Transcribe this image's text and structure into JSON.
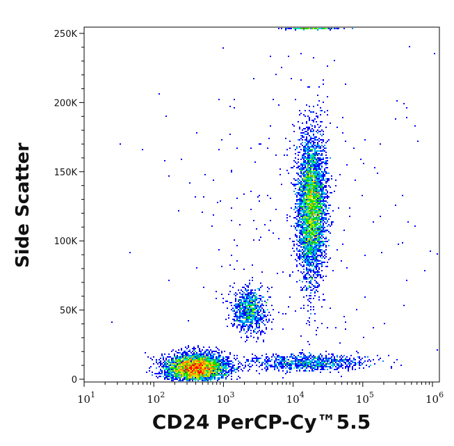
{
  "chart_data": {
    "type": "heatmap",
    "subtype": "flow-cytometry-density-scatter",
    "xlabel": "CD24 PerCP-Cy™5.5",
    "ylabel": "Side Scatter",
    "xscale": "log",
    "xlim": [
      10,
      1000000
    ],
    "ylim": [
      0,
      255000
    ],
    "x_ticks": [
      {
        "base": "10",
        "exp": "1",
        "value": 10
      },
      {
        "base": "10",
        "exp": "2",
        "value": 100
      },
      {
        "base": "10",
        "exp": "3",
        "value": 1000
      },
      {
        "base": "10",
        "exp": "4",
        "value": 10000
      },
      {
        "base": "10",
        "exp": "5",
        "value": 100000
      },
      {
        "base": "10",
        "exp": "6",
        "value": 1000000
      }
    ],
    "y_ticks": [
      {
        "label": "0",
        "value": 0
      },
      {
        "label": "50K",
        "value": 50000
      },
      {
        "label": "100K",
        "value": 100000
      },
      {
        "label": "150K",
        "value": 150000
      },
      {
        "label": "200K",
        "value": 200000
      },
      {
        "label": "250K",
        "value": 250000
      }
    ],
    "colormap": [
      "#0000ff",
      "#0088ff",
      "#00e0e0",
      "#00e000",
      "#e0e000",
      "#ff8000",
      "#ff0000"
    ],
    "populations": [
      {
        "name": "CD24-low low-SSC",
        "center_x": 400,
        "center_y": 8000,
        "log_spread_x": 0.22,
        "spread_y": 5000,
        "events": 4200
      },
      {
        "name": "CD24-intermediate",
        "center_x": 2400,
        "center_y": 50000,
        "log_spread_x": 0.12,
        "spread_y": 8000,
        "events": 900
      },
      {
        "name": "CD24-high high-SSC",
        "center_x": 18500,
        "center_y": 125000,
        "log_spread_x": 0.1,
        "spread_y": 26000,
        "events": 4500
      },
      {
        "name": "low-SSC band",
        "center_x": 15000,
        "center_y": 12000,
        "log_spread_x": 0.45,
        "spread_y": 3000,
        "events": 900
      },
      {
        "name": "saturated SSC",
        "center_x": 18000,
        "center_y": 254000,
        "log_spread_x": 0.2,
        "spread_y": 500,
        "events": 300
      },
      {
        "name": "scattered events",
        "center_x": 10000,
        "center_y": 120000,
        "log_spread_x": 0.9,
        "spread_y": 70000,
        "events": 250
      }
    ]
  }
}
